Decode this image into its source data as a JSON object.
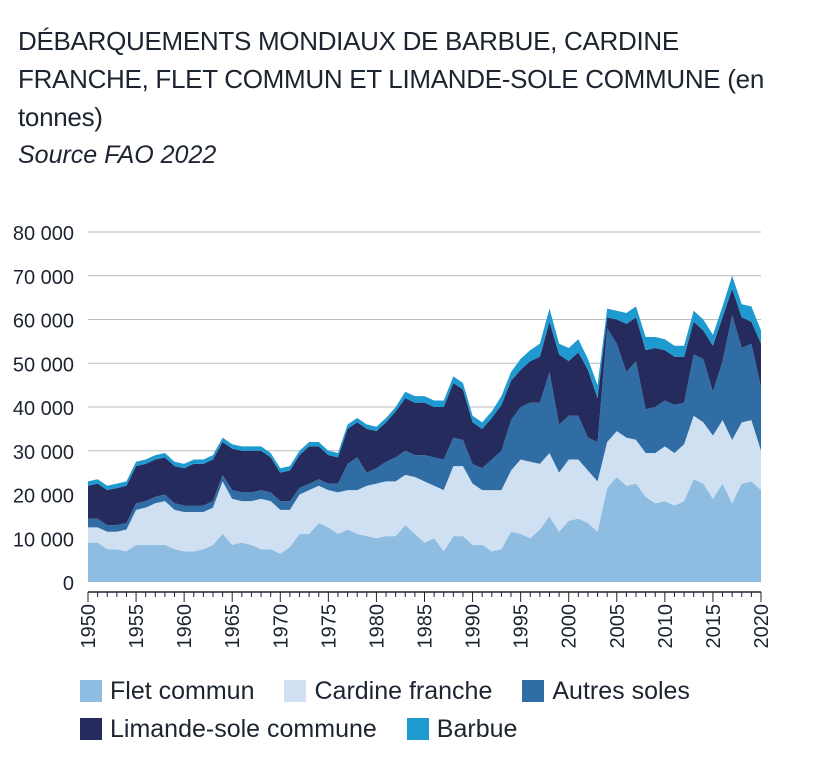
{
  "header": {
    "title": "DÉBARQUEMENTS MONDIAUX DE BARBUE, CARDINE FRANCHE, FLET COMMUN ET LIMANDE-SOLE COMMUNE",
    "title_suffix": "(en tonnes)",
    "source": "Source FAO 2022"
  },
  "chart_data": {
    "type": "area",
    "stacked": true,
    "x": [
      1950,
      1951,
      1952,
      1953,
      1954,
      1955,
      1956,
      1957,
      1958,
      1959,
      1960,
      1961,
      1962,
      1963,
      1964,
      1965,
      1966,
      1967,
      1968,
      1969,
      1970,
      1971,
      1972,
      1973,
      1974,
      1975,
      1976,
      1977,
      1978,
      1979,
      1980,
      1981,
      1982,
      1983,
      1984,
      1985,
      1986,
      1987,
      1988,
      1989,
      1990,
      1991,
      1992,
      1993,
      1994,
      1995,
      1996,
      1997,
      1998,
      1999,
      2000,
      2001,
      2002,
      2003,
      2004,
      2005,
      2006,
      2007,
      2008,
      2009,
      2010,
      2011,
      2012,
      2013,
      2014,
      2015,
      2016,
      2017,
      2018,
      2019,
      2020
    ],
    "ylim": [
      0,
      80000
    ],
    "yticks": [
      "0",
      "10 000",
      "20 000",
      "30 000",
      "40 000",
      "50 000",
      "60 000",
      "70 000",
      "80 000"
    ],
    "ytick_values": [
      0,
      10000,
      20000,
      30000,
      40000,
      50000,
      60000,
      70000,
      80000
    ],
    "xticks": [
      1950,
      1955,
      1960,
      1965,
      1970,
      1975,
      1980,
      1985,
      1990,
      1995,
      2000,
      2005,
      2010,
      2015,
      2020
    ],
    "grid": true,
    "legend_position": "bottom",
    "series": [
      {
        "name": "Flet commun",
        "color": "#8fbde1",
        "values": [
          9000,
          9000,
          7500,
          7500,
          7000,
          8500,
          8500,
          8500,
          8500,
          7500,
          7000,
          7000,
          7500,
          8500,
          11000,
          8500,
          9000,
          8500,
          7500,
          7500,
          6500,
          8000,
          11000,
          11000,
          13500,
          12500,
          11000,
          12000,
          11000,
          10500,
          10000,
          10500,
          10500,
          13000,
          11000,
          9000,
          10000,
          7000,
          10500,
          10500,
          8500,
          8500,
          7000,
          7500,
          11500,
          11000,
          10000,
          12000,
          15000,
          11500,
          14000,
          14500,
          13500,
          11500,
          21500,
          24000,
          22000,
          22500,
          19500,
          18000,
          18500,
          17500,
          18500,
          23500,
          22500,
          19000,
          22500,
          18000,
          22500,
          23000,
          21000
        ]
      },
      {
        "name": "Cardine franche",
        "color": "#cfe0f3",
        "values": [
          3500,
          3500,
          4000,
          4000,
          5000,
          8000,
          8500,
          9500,
          10000,
          9000,
          9000,
          9000,
          8500,
          8500,
          12000,
          10500,
          9500,
          10000,
          11500,
          11000,
          10000,
          8500,
          9000,
          10000,
          8500,
          8500,
          9500,
          9000,
          10000,
          11500,
          12500,
          12500,
          12500,
          11500,
          13000,
          14000,
          12000,
          14000,
          16000,
          16000,
          14000,
          12500,
          14000,
          13500,
          14000,
          17000,
          17500,
          15000,
          14500,
          13500,
          14000,
          13500,
          12000,
          11500,
          10500,
          10500,
          11000,
          10000,
          10000,
          11500,
          12500,
          12000,
          13000,
          14500,
          14000,
          14500,
          14500,
          14500,
          14000,
          14000,
          9000
        ]
      },
      {
        "name": "Autres soles",
        "color": "#2f6da4",
        "values": [
          2000,
          2000,
          1500,
          1500,
          1500,
          1500,
          1500,
          1500,
          1500,
          1500,
          1500,
          1500,
          1500,
          1500,
          1500,
          2000,
          2000,
          2000,
          2000,
          2000,
          2000,
          2000,
          1500,
          1500,
          1500,
          1500,
          2000,
          6000,
          7500,
          3000,
          3500,
          4500,
          5500,
          5500,
          5000,
          6000,
          6500,
          7000,
          6500,
          6000,
          4500,
          5000,
          7000,
          9000,
          11500,
          12000,
          13500,
          14000,
          18500,
          11000,
          10000,
          10000,
          7500,
          9000,
          26000,
          20000,
          15000,
          18000,
          10000,
          10500,
          10500,
          11000,
          9500,
          14000,
          14500,
          10000,
          13500,
          28500,
          17000,
          17500,
          14500
        ]
      },
      {
        "name": "Limande-sole commune",
        "color": "#252b5c",
        "values": [
          7500,
          8000,
          8000,
          8500,
          8500,
          8500,
          8500,
          8500,
          8500,
          8500,
          8500,
          9500,
          9500,
          9500,
          7500,
          9500,
          9500,
          9500,
          9000,
          8000,
          6500,
          7000,
          7500,
          8500,
          7500,
          6500,
          6000,
          8000,
          8000,
          10000,
          8500,
          9000,
          10500,
          12000,
          12000,
          12000,
          11500,
          12000,
          12500,
          11500,
          9500,
          9000,
          9500,
          10500,
          9000,
          8500,
          9500,
          10500,
          11500,
          16000,
          12500,
          14500,
          15500,
          10000,
          2500,
          5500,
          11000,
          10000,
          13500,
          13500,
          11500,
          11000,
          10500,
          7500,
          6500,
          10500,
          10000,
          6000,
          7000,
          5000,
          10000
        ]
      },
      {
        "name": "Barbue",
        "color": "#1f9ad0",
        "values": [
          1000,
          1000,
          1000,
          1000,
          1000,
          1000,
          1000,
          1000,
          1000,
          1000,
          1000,
          1000,
          1000,
          1000,
          1000,
          1000,
          1000,
          1000,
          1000,
          1000,
          1000,
          1000,
          1000,
          1000,
          1000,
          1000,
          1000,
          1000,
          1000,
          1000,
          1000,
          1000,
          1000,
          1500,
          1500,
          1500,
          1500,
          1500,
          1500,
          1500,
          1500,
          1500,
          1500,
          2000,
          2000,
          2500,
          2500,
          3000,
          3000,
          2500,
          3000,
          3000,
          2500,
          3000,
          2000,
          2000,
          2500,
          2500,
          3000,
          2500,
          2500,
          2500,
          2500,
          2500,
          2500,
          2500,
          2500,
          3000,
          3000,
          3500,
          3000
        ]
      }
    ]
  }
}
